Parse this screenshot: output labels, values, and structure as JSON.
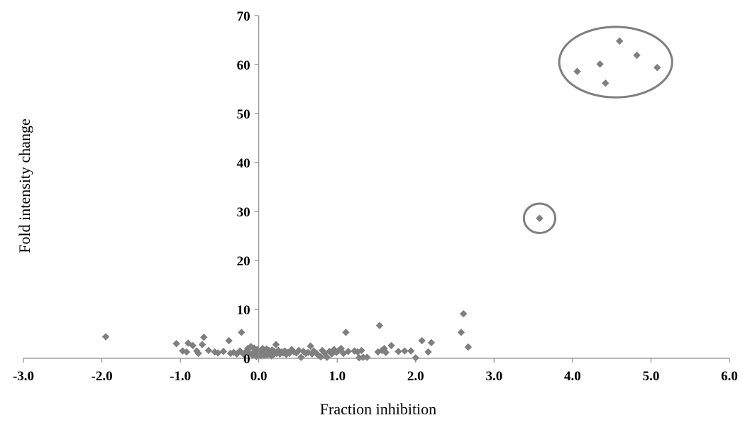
{
  "chart_data": {
    "type": "scatter",
    "xlabel": "Fraction inhibition",
    "ylabel": "Fold intensity change",
    "xlim": [
      -3.0,
      6.0
    ],
    "ylim": [
      0,
      70
    ],
    "x_ticks": [
      -3,
      -2,
      -1,
      0,
      1,
      2,
      3,
      4,
      5,
      6
    ],
    "x_tick_labels": [
      "-3.0",
      "-2.0",
      "-1.0",
      "0.0",
      "1.0",
      "2.0",
      "3.0",
      "4.0",
      "5.0",
      "6.0"
    ],
    "y_ticks": [
      0,
      10,
      20,
      30,
      40,
      50,
      60,
      70
    ],
    "y_tick_labels": [
      "0",
      "10",
      "20",
      "30",
      "40",
      "50",
      "60",
      "70"
    ],
    "grid": false,
    "legend": "none",
    "marker_color": "#7f7f7f",
    "annotations": [
      {
        "shape": "ellipse",
        "cx": 4.55,
        "cy": 60.5,
        "rx": 0.72,
        "ry": 7.2
      },
      {
        "shape": "ellipse",
        "cx": 3.58,
        "cy": 28.6,
        "rx": 0.2,
        "ry": 3.0
      }
    ],
    "series": [
      {
        "points": [
          [
            -1.95,
            4.4
          ],
          [
            -1.05,
            3.0
          ],
          [
            -0.97,
            1.5
          ],
          [
            -0.92,
            1.3
          ],
          [
            -0.9,
            3.1
          ],
          [
            -0.84,
            2.6
          ],
          [
            -0.79,
            1.5
          ],
          [
            -0.77,
            1.0
          ],
          [
            -0.72,
            2.8
          ],
          [
            -0.7,
            4.3
          ],
          [
            -0.64,
            1.6
          ],
          [
            -0.56,
            1.3
          ],
          [
            -0.52,
            1.1
          ],
          [
            -0.45,
            1.4
          ],
          [
            -0.38,
            3.6
          ],
          [
            -0.36,
            1.0
          ],
          [
            -0.32,
            1.2
          ],
          [
            -0.28,
            0.9
          ],
          [
            -0.24,
            1.5
          ],
          [
            -0.22,
            5.3
          ],
          [
            -0.19,
            0.8
          ],
          [
            -0.16,
            1.4
          ],
          [
            -0.14,
            2.0
          ],
          [
            -0.12,
            1.1
          ],
          [
            -0.1,
            2.4
          ],
          [
            -0.08,
            0.6
          ],
          [
            -0.07,
            1.2
          ],
          [
            -0.06,
            2.1
          ],
          [
            -0.05,
            0.9
          ],
          [
            -0.04,
            1.6
          ],
          [
            -0.03,
            0.4
          ],
          [
            -0.02,
            1.8
          ],
          [
            -0.01,
            0.7
          ],
          [
            0.0,
            1.3
          ],
          [
            0.01,
            0.9
          ],
          [
            0.02,
            1.5
          ],
          [
            0.03,
            0.5
          ],
          [
            0.04,
            1.1
          ],
          [
            0.05,
            2.0
          ],
          [
            0.06,
            0.8
          ],
          [
            0.07,
            1.4
          ],
          [
            0.08,
            0.6
          ],
          [
            0.09,
            1.2
          ],
          [
            0.1,
            1.9
          ],
          [
            0.11,
            0.7
          ],
          [
            0.12,
            1.0
          ],
          [
            0.13,
            1.6
          ],
          [
            0.14,
            0.9
          ],
          [
            0.15,
            1.3
          ],
          [
            0.16,
            0.5
          ],
          [
            0.17,
            1.7
          ],
          [
            0.18,
            1.1
          ],
          [
            0.19,
            0.8
          ],
          [
            0.2,
            1.4
          ],
          [
            0.22,
            2.8
          ],
          [
            0.23,
            1.0
          ],
          [
            0.25,
            1.6
          ],
          [
            0.27,
            0.9
          ],
          [
            0.29,
            1.3
          ],
          [
            0.31,
            1.1
          ],
          [
            0.33,
            1.5
          ],
          [
            0.35,
            0.8
          ],
          [
            0.37,
            1.2
          ],
          [
            0.39,
            1.0
          ],
          [
            0.42,
            1.8
          ],
          [
            0.45,
            1.3
          ],
          [
            0.48,
            1.1
          ],
          [
            0.51,
            1.6
          ],
          [
            0.54,
            0.2
          ],
          [
            0.57,
            1.4
          ],
          [
            0.6,
            1.0
          ],
          [
            0.63,
            1.2
          ],
          [
            0.66,
            2.5
          ],
          [
            0.68,
            0.9
          ],
          [
            0.7,
            1.5
          ],
          [
            0.73,
            1.1
          ],
          [
            0.76,
            0.6
          ],
          [
            0.79,
            0.3
          ],
          [
            0.81,
            1.6
          ],
          [
            0.84,
            1.1
          ],
          [
            0.87,
            0.2
          ],
          [
            0.9,
            1.4
          ],
          [
            0.93,
            0.9
          ],
          [
            0.96,
            1.8
          ],
          [
            0.99,
            1.2
          ],
          [
            1.02,
            1.6
          ],
          [
            1.05,
            2.0
          ],
          [
            1.08,
            1.0
          ],
          [
            1.11,
            5.3
          ],
          [
            1.14,
            1.4
          ],
          [
            1.22,
            1.5
          ],
          [
            1.26,
            1.3
          ],
          [
            1.28,
            0.1
          ],
          [
            1.31,
            1.6
          ],
          [
            1.33,
            0.2
          ],
          [
            1.38,
            0.2
          ],
          [
            1.52,
            1.3
          ],
          [
            1.54,
            6.7
          ],
          [
            1.57,
            1.6
          ],
          [
            1.6,
            2.0
          ],
          [
            1.62,
            1.2
          ],
          [
            1.69,
            2.6
          ],
          [
            1.78,
            1.4
          ],
          [
            1.86,
            1.5
          ],
          [
            1.94,
            1.5
          ],
          [
            2.0,
            0.1
          ],
          [
            2.08,
            3.6
          ],
          [
            2.16,
            1.3
          ],
          [
            2.2,
            3.2
          ],
          [
            2.58,
            5.3
          ],
          [
            2.61,
            9.1
          ],
          [
            2.67,
            2.3
          ],
          [
            3.58,
            28.6
          ],
          [
            4.06,
            58.6
          ],
          [
            4.35,
            60.1
          ],
          [
            4.42,
            56.2
          ],
          [
            4.6,
            64.8
          ],
          [
            4.82,
            61.9
          ],
          [
            5.08,
            59.4
          ]
        ]
      }
    ]
  }
}
